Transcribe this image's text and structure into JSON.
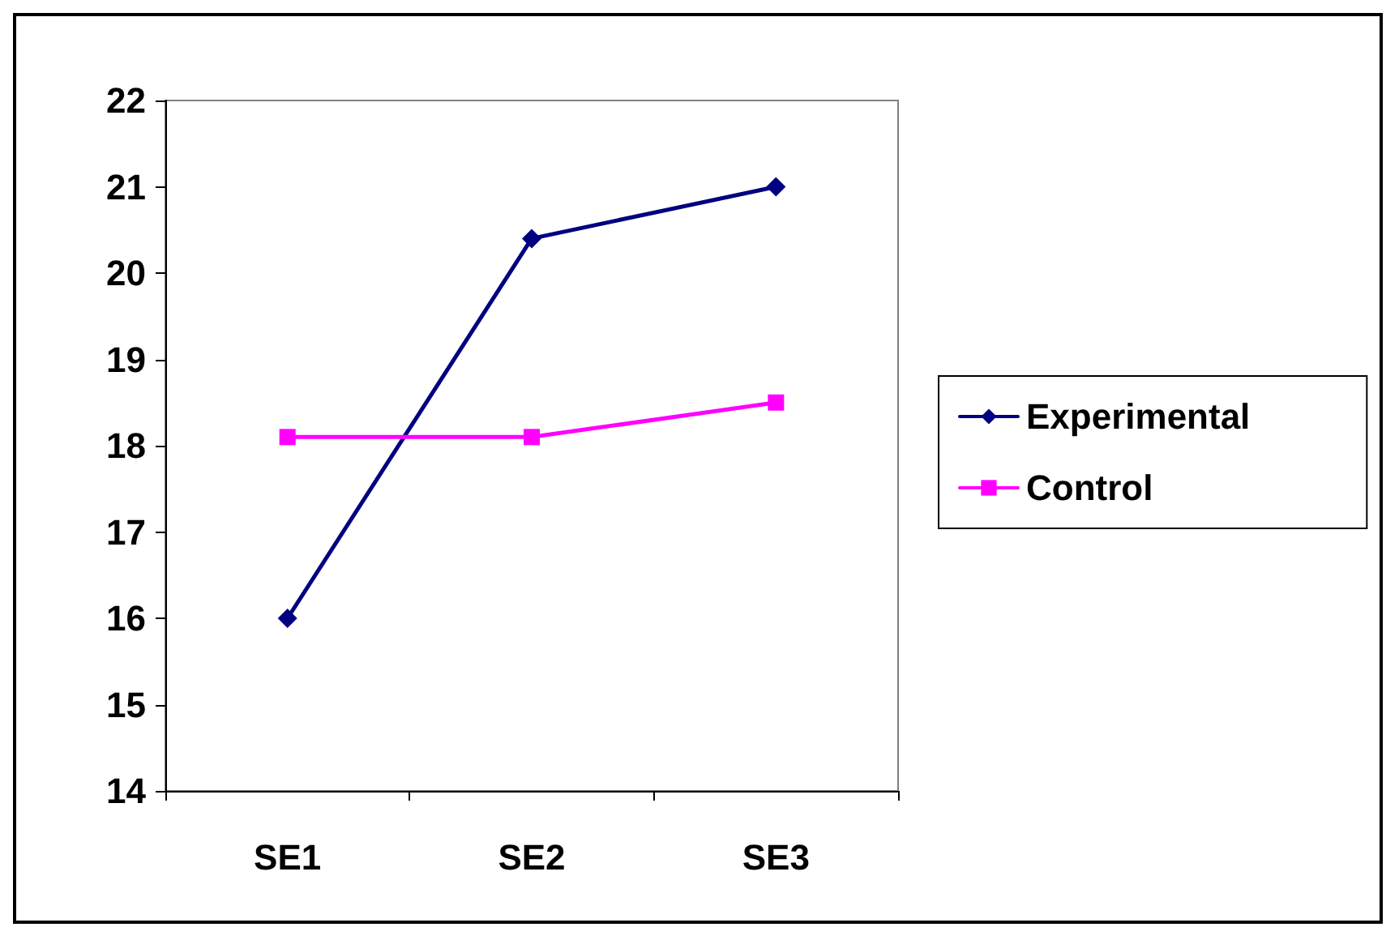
{
  "chart_data": {
    "type": "line",
    "categories": [
      "SE1",
      "SE2",
      "SE3"
    ],
    "series": [
      {
        "name": "Experimental",
        "color": "#000080",
        "marker": "diamond",
        "values": [
          16.0,
          20.4,
          21.0
        ]
      },
      {
        "name": "Control",
        "color": "#ff00ff",
        "marker": "square",
        "values": [
          18.1,
          18.1,
          18.5
        ]
      }
    ],
    "ylim": [
      14,
      22
    ],
    "yticks": [
      14,
      15,
      16,
      17,
      18,
      19,
      20,
      21,
      22
    ],
    "grid": false,
    "legend": "right",
    "line_style": "solid"
  }
}
